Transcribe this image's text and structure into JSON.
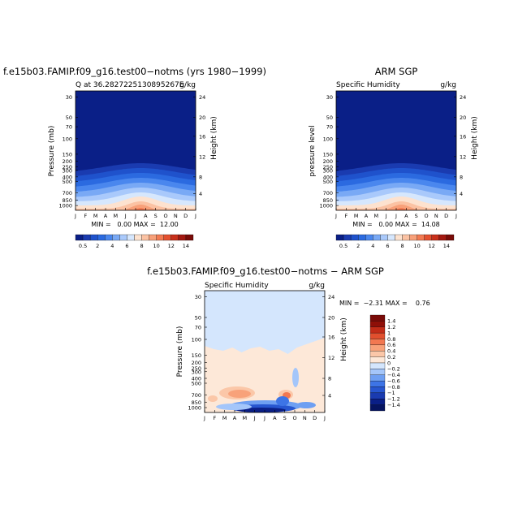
{
  "chart_data": [
    {
      "type": "heatmap",
      "title": "f.e15b03.FAMIP.f09_g16.test00−notms (yrs 1980−1999)",
      "subtitle_left": "Q at 36.2827225130895267E",
      "subtitle_right": "g/kg",
      "ylabel": "Pressure (mb)",
      "ylabel_right": "Height (km)",
      "x_ticks": [
        "J",
        "F",
        "M",
        "A",
        "M",
        "J",
        "J",
        "A",
        "S",
        "O",
        "N",
        "D",
        "J"
      ],
      "y_ticks": [
        "30",
        "50",
        "70",
        "100",
        "150",
        "200",
        "250",
        "300",
        "400",
        "500",
        "700",
        "850",
        "1000"
      ],
      "y_ticks_right": [
        "24",
        "20",
        "16",
        "12",
        "8",
        "4"
      ],
      "stats": "MIN =   0.00 MAX =  12.00",
      "min": 0.0,
      "max": 12.0,
      "colorbar_labels": [
        "0.5",
        "2",
        "4",
        "6",
        "8",
        "10",
        "12",
        "14"
      ],
      "colorbar_levels": [
        0.5,
        1,
        2,
        3,
        4,
        5,
        6,
        7,
        8,
        9,
        10,
        11,
        12,
        13,
        14
      ],
      "peak_month_index": 6.5
    },
    {
      "type": "heatmap",
      "title": "ARM SGP",
      "subtitle_left": "Specific Humidity",
      "subtitle_right": "g/kg",
      "ylabel": "pressure level",
      "ylabel_right": "Height (km)",
      "x_ticks": [
        "J",
        "F",
        "M",
        "A",
        "M",
        "J",
        "J",
        "A",
        "S",
        "O",
        "N",
        "D",
        "J"
      ],
      "y_ticks": [
        "30",
        "50",
        "70",
        "100",
        "150",
        "200",
        "250",
        "300",
        "400",
        "500",
        "700",
        "850",
        "1000"
      ],
      "y_ticks_right": [
        "24",
        "20",
        "16",
        "12",
        "8",
        "4"
      ],
      "stats": "MIN =   0.00 MAX =  14.08",
      "min": 0.0,
      "max": 14.08,
      "colorbar_labels": [
        "0.5",
        "2",
        "4",
        "6",
        "8",
        "10",
        "12",
        "14"
      ],
      "colorbar_levels": [
        0.5,
        1,
        2,
        3,
        4,
        5,
        6,
        7,
        8,
        9,
        10,
        11,
        12,
        13,
        14
      ],
      "peak_month_index": 6.5
    },
    {
      "type": "heatmap",
      "title": "f.e15b03.FAMIP.f09_g16.test00−notms − ARM SGP",
      "subtitle_left": "Specific Humidity",
      "subtitle_right": "g/kg",
      "ylabel": "Pressure (mb)",
      "ylabel_right": "Height (km)",
      "x_ticks": [
        "J",
        "F",
        "M",
        "A",
        "M",
        "J",
        "J",
        "A",
        "S",
        "O",
        "N",
        "D",
        "J"
      ],
      "y_ticks": [
        "30",
        "50",
        "70",
        "100",
        "150",
        "200",
        "250",
        "300",
        "400",
        "500",
        "700",
        "850",
        "1000"
      ],
      "y_ticks_right": [
        "24",
        "20",
        "16",
        "12",
        "8",
        "4"
      ],
      "stats": "MIN =  −2.31 MAX =    0.76",
      "min": -2.31,
      "max": 0.76,
      "colorbar_labels": [
        "1.4",
        "1.2",
        "1",
        "0.8",
        "0.6",
        "0.4",
        "0.2",
        "0",
        "−0.2",
        "−0.4",
        "−0.6",
        "−0.8",
        "−1",
        "−1.2",
        "−1.4"
      ],
      "colorbar_levels": [
        1.4,
        1.2,
        1,
        0.8,
        0.6,
        0.4,
        0.2,
        0,
        -0.2,
        -0.4,
        -0.6,
        -0.8,
        -1,
        -1.2,
        -1.4
      ]
    }
  ],
  "colors": {
    "background_dark": "#0a1f87",
    "low_seq": [
      "#0a1f87",
      "#1a3bb0",
      "#1f52cc",
      "#2b6ae0",
      "#4a87ee",
      "#79a9f5",
      "#a9c9fb",
      "#d6e7fd"
    ],
    "high_seq": [
      "#fde2cf",
      "#fbc2a3",
      "#f8a079",
      "#f37a52",
      "#e4502f",
      "#c8301b",
      "#a31810",
      "#7a0b08"
    ],
    "diff_neg": [
      "#0a1f87",
      "#1a3bb0",
      "#2756d0",
      "#3d74e6",
      "#6e9ff2",
      "#a4c6fa",
      "#d4e6fd"
    ],
    "diff_pos": [
      "#fde8d8",
      "#fbc7a8",
      "#f8a27a",
      "#f27851",
      "#e14f2e",
      "#c22c18",
      "#8f0f08"
    ]
  }
}
